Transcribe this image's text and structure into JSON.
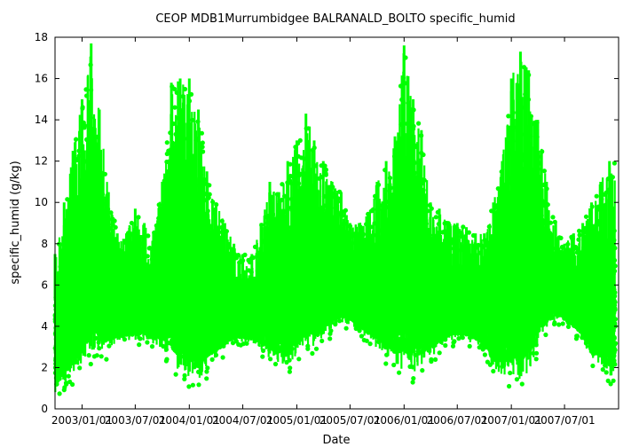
{
  "chart_data": {
    "type": "scatter",
    "title": "CEOP MDB1Murrumbidgee BALRANALD_BOLTO  specific_humid",
    "xlabel": "Date",
    "ylabel": "specific_humid (g/kg)",
    "x_range": [
      "2002-10-01",
      "2008-01-01"
    ],
    "ylim": [
      0,
      18
    ],
    "y_ticks": [
      0,
      2,
      4,
      6,
      8,
      10,
      12,
      14,
      16,
      18
    ],
    "x_ticks": [
      {
        "date": "2003-01-01",
        "label": "2003/01/01"
      },
      {
        "date": "2003-07-01",
        "label": "2003/07/01"
      },
      {
        "date": "2004-01-01",
        "label": "2004/01/01"
      },
      {
        "date": "2004-07-01",
        "label": "2004/07/01"
      },
      {
        "date": "2005-01-01",
        "label": "2005/01/01"
      },
      {
        "date": "2005-07-01",
        "label": "2005/07/01"
      },
      {
        "date": "2006-01-01",
        "label": "2006/01/01"
      },
      {
        "date": "2006-07-01",
        "label": "2006/07/01"
      },
      {
        "date": "2007-01-01",
        "label": "2007/01/01"
      },
      {
        "date": "2007-07-01",
        "label": "2007/07/01"
      }
    ],
    "series_color": "#00ff00",
    "grid": false,
    "series": [
      {
        "x": [
          "2002-10-01",
          "2002-11-01",
          "2002-12-01",
          "2003-01-01",
          "2003-02-01",
          "2003-03-01",
          "2003-04-01",
          "2003-05-01",
          "2003-06-01",
          "2003-07-01",
          "2003-08-01",
          "2003-09-01",
          "2003-10-01",
          "2003-11-01",
          "2003-12-01",
          "2004-01-01",
          "2004-02-01",
          "2004-03-01",
          "2004-04-01",
          "2004-05-01",
          "2004-06-01",
          "2004-07-01",
          "2004-08-01",
          "2004-09-01",
          "2004-10-01",
          "2004-11-01",
          "2004-12-01",
          "2005-01-01",
          "2005-02-01",
          "2005-03-01",
          "2005-04-01",
          "2005-05-01",
          "2005-06-01",
          "2005-07-01",
          "2005-08-01",
          "2005-09-01",
          "2005-10-01",
          "2005-11-01",
          "2005-12-01",
          "2006-01-01",
          "2006-02-01",
          "2006-03-01",
          "2006-04-01",
          "2006-05-01",
          "2006-06-01",
          "2006-07-01",
          "2006-08-01",
          "2006-09-01",
          "2006-10-01",
          "2006-11-01",
          "2006-12-01",
          "2007-01-01",
          "2007-02-01",
          "2007-03-01",
          "2007-04-01",
          "2007-05-01",
          "2007-06-01",
          "2007-07-01",
          "2007-08-01",
          "2007-09-01",
          "2007-10-01",
          "2007-11-01",
          "2007-12-01"
        ],
        "y_min": [
          0.3,
          0.8,
          1.0,
          1.5,
          1.8,
          2.0,
          2.5,
          3.0,
          3.0,
          3.0,
          3.0,
          2.8,
          2.5,
          1.5,
          1.0,
          0.8,
          0.6,
          1.5,
          2.0,
          2.5,
          3.0,
          3.0,
          3.0,
          2.5,
          2.0,
          1.8,
          1.5,
          2.0,
          2.5,
          2.5,
          3.0,
          3.5,
          3.8,
          3.8,
          3.5,
          3.0,
          2.5,
          2.0,
          1.5,
          1.0,
          1.0,
          1.5,
          2.0,
          2.5,
          3.0,
          3.0,
          3.0,
          2.8,
          2.5,
          1.5,
          1.0,
          0.8,
          0.6,
          1.0,
          2.5,
          3.5,
          4.0,
          4.0,
          3.5,
          3.0,
          2.0,
          1.5,
          1.0
        ],
        "y_max": [
          7.5,
          10.0,
          12.5,
          15.0,
          17.7,
          14.5,
          10.5,
          8.5,
          8.5,
          9.7,
          9.0,
          8.5,
          11.0,
          15.8,
          16.0,
          16.0,
          14.5,
          11.5,
          10.0,
          9.0,
          8.0,
          7.5,
          7.5,
          9.0,
          11.0,
          10.5,
          12.0,
          13.0,
          14.3,
          13.0,
          12.0,
          11.0,
          10.5,
          9.0,
          9.0,
          9.5,
          11.0,
          12.0,
          13.2,
          17.6,
          15.0,
          13.5,
          10.0,
          9.7,
          9.0,
          9.0,
          8.8,
          8.5,
          8.5,
          10.0,
          12.0,
          16.0,
          17.3,
          16.4,
          14.0,
          11.0,
          9.0,
          8.0,
          8.5,
          9.0,
          10.0,
          11.0,
          12.0
        ]
      }
    ]
  }
}
